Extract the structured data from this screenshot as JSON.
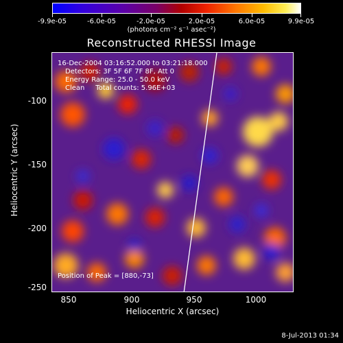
{
  "colorbar": {
    "tick_labels": [
      "-9.9e-05",
      "-6.0e-05",
      "-2.0e-05",
      "2.0e-05",
      "6.0e-05",
      "9.9e-05"
    ],
    "min": -9.9e-05,
    "max": 9.9e-05,
    "units": "(photons cm⁻² s⁻¹ asec⁻²)"
  },
  "plot": {
    "title": "Reconstructed RHESSI Image",
    "info_lines": [
      "16-Dec-2004 03:16:52.000 to 03:21:18.000",
      "Detectors: 3F 5F 6F 7F 8F, Att 0",
      "Energy Range: 25.0 - 50.0 keV",
      "Clean     Total counts: 5.96E+03"
    ],
    "peak_label": "Position of Peak = [880,-73]",
    "xlabel": "Heliocentric X (arcsec)",
    "ylabel": "Heliocentric Y (arcsec)",
    "x_ticks": [
      "850",
      "900",
      "950",
      "1000"
    ],
    "y_ticks": [
      "-100",
      "-150",
      "-200",
      "-250"
    ],
    "xlim": [
      836,
      1028
    ],
    "ylim": [
      -252,
      -61
    ]
  },
  "footer": {
    "date": "8-Jul-2013 01:34"
  },
  "chart_data": {
    "type": "heatmap",
    "title": "Reconstructed RHESSI Image",
    "xlabel": "Heliocentric X (arcsec)",
    "ylabel": "Heliocentric Y (arcsec)",
    "xlim": [
      836,
      1028
    ],
    "ylim": [
      -252,
      -61
    ],
    "colorbar_range": [
      -9.9e-05,
      9.9e-05
    ],
    "peak_position": [
      880,
      -73
    ],
    "limb_line": [
      [
        941,
        -252
      ],
      [
        968,
        -61
      ]
    ]
  }
}
